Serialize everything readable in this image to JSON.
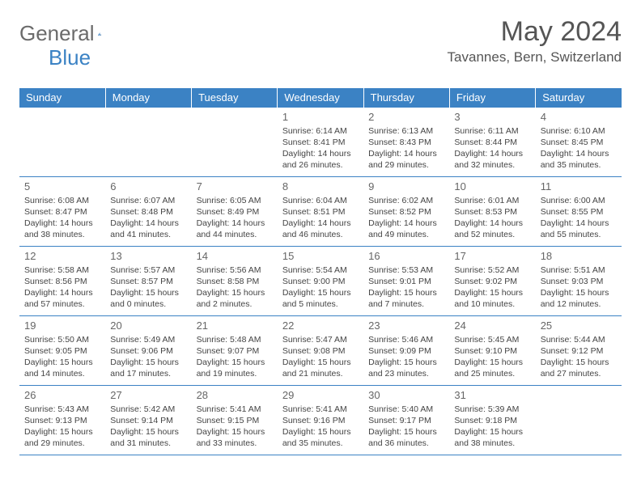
{
  "logo": {
    "part1": "General",
    "part2": "Blue"
  },
  "title": "May 2024",
  "location": "Tavannes, Bern, Switzerland",
  "colors": {
    "header_bg": "#3b82c4",
    "header_fg": "#ffffff",
    "border": "#3b82c4",
    "text": "#444444",
    "title": "#555555",
    "logo_gray": "#6b6b6b",
    "logo_blue": "#3b82c4"
  },
  "days": [
    "Sunday",
    "Monday",
    "Tuesday",
    "Wednesday",
    "Thursday",
    "Friday",
    "Saturday"
  ],
  "weeks": [
    [
      null,
      null,
      null,
      {
        "n": "1",
        "sr": "6:14 AM",
        "ss": "8:41 PM",
        "dl": "14 hours and 26 minutes."
      },
      {
        "n": "2",
        "sr": "6:13 AM",
        "ss": "8:43 PM",
        "dl": "14 hours and 29 minutes."
      },
      {
        "n": "3",
        "sr": "6:11 AM",
        "ss": "8:44 PM",
        "dl": "14 hours and 32 minutes."
      },
      {
        "n": "4",
        "sr": "6:10 AM",
        "ss": "8:45 PM",
        "dl": "14 hours and 35 minutes."
      }
    ],
    [
      {
        "n": "5",
        "sr": "6:08 AM",
        "ss": "8:47 PM",
        "dl": "14 hours and 38 minutes."
      },
      {
        "n": "6",
        "sr": "6:07 AM",
        "ss": "8:48 PM",
        "dl": "14 hours and 41 minutes."
      },
      {
        "n": "7",
        "sr": "6:05 AM",
        "ss": "8:49 PM",
        "dl": "14 hours and 44 minutes."
      },
      {
        "n": "8",
        "sr": "6:04 AM",
        "ss": "8:51 PM",
        "dl": "14 hours and 46 minutes."
      },
      {
        "n": "9",
        "sr": "6:02 AM",
        "ss": "8:52 PM",
        "dl": "14 hours and 49 minutes."
      },
      {
        "n": "10",
        "sr": "6:01 AM",
        "ss": "8:53 PM",
        "dl": "14 hours and 52 minutes."
      },
      {
        "n": "11",
        "sr": "6:00 AM",
        "ss": "8:55 PM",
        "dl": "14 hours and 55 minutes."
      }
    ],
    [
      {
        "n": "12",
        "sr": "5:58 AM",
        "ss": "8:56 PM",
        "dl": "14 hours and 57 minutes."
      },
      {
        "n": "13",
        "sr": "5:57 AM",
        "ss": "8:57 PM",
        "dl": "15 hours and 0 minutes."
      },
      {
        "n": "14",
        "sr": "5:56 AM",
        "ss": "8:58 PM",
        "dl": "15 hours and 2 minutes."
      },
      {
        "n": "15",
        "sr": "5:54 AM",
        "ss": "9:00 PM",
        "dl": "15 hours and 5 minutes."
      },
      {
        "n": "16",
        "sr": "5:53 AM",
        "ss": "9:01 PM",
        "dl": "15 hours and 7 minutes."
      },
      {
        "n": "17",
        "sr": "5:52 AM",
        "ss": "9:02 PM",
        "dl": "15 hours and 10 minutes."
      },
      {
        "n": "18",
        "sr": "5:51 AM",
        "ss": "9:03 PM",
        "dl": "15 hours and 12 minutes."
      }
    ],
    [
      {
        "n": "19",
        "sr": "5:50 AM",
        "ss": "9:05 PM",
        "dl": "15 hours and 14 minutes."
      },
      {
        "n": "20",
        "sr": "5:49 AM",
        "ss": "9:06 PM",
        "dl": "15 hours and 17 minutes."
      },
      {
        "n": "21",
        "sr": "5:48 AM",
        "ss": "9:07 PM",
        "dl": "15 hours and 19 minutes."
      },
      {
        "n": "22",
        "sr": "5:47 AM",
        "ss": "9:08 PM",
        "dl": "15 hours and 21 minutes."
      },
      {
        "n": "23",
        "sr": "5:46 AM",
        "ss": "9:09 PM",
        "dl": "15 hours and 23 minutes."
      },
      {
        "n": "24",
        "sr": "5:45 AM",
        "ss": "9:10 PM",
        "dl": "15 hours and 25 minutes."
      },
      {
        "n": "25",
        "sr": "5:44 AM",
        "ss": "9:12 PM",
        "dl": "15 hours and 27 minutes."
      }
    ],
    [
      {
        "n": "26",
        "sr": "5:43 AM",
        "ss": "9:13 PM",
        "dl": "15 hours and 29 minutes."
      },
      {
        "n": "27",
        "sr": "5:42 AM",
        "ss": "9:14 PM",
        "dl": "15 hours and 31 minutes."
      },
      {
        "n": "28",
        "sr": "5:41 AM",
        "ss": "9:15 PM",
        "dl": "15 hours and 33 minutes."
      },
      {
        "n": "29",
        "sr": "5:41 AM",
        "ss": "9:16 PM",
        "dl": "15 hours and 35 minutes."
      },
      {
        "n": "30",
        "sr": "5:40 AM",
        "ss": "9:17 PM",
        "dl": "15 hours and 36 minutes."
      },
      {
        "n": "31",
        "sr": "5:39 AM",
        "ss": "9:18 PM",
        "dl": "15 hours and 38 minutes."
      },
      null
    ]
  ],
  "labels": {
    "sunrise": "Sunrise: ",
    "sunset": "Sunset: ",
    "daylight": "Daylight: "
  }
}
